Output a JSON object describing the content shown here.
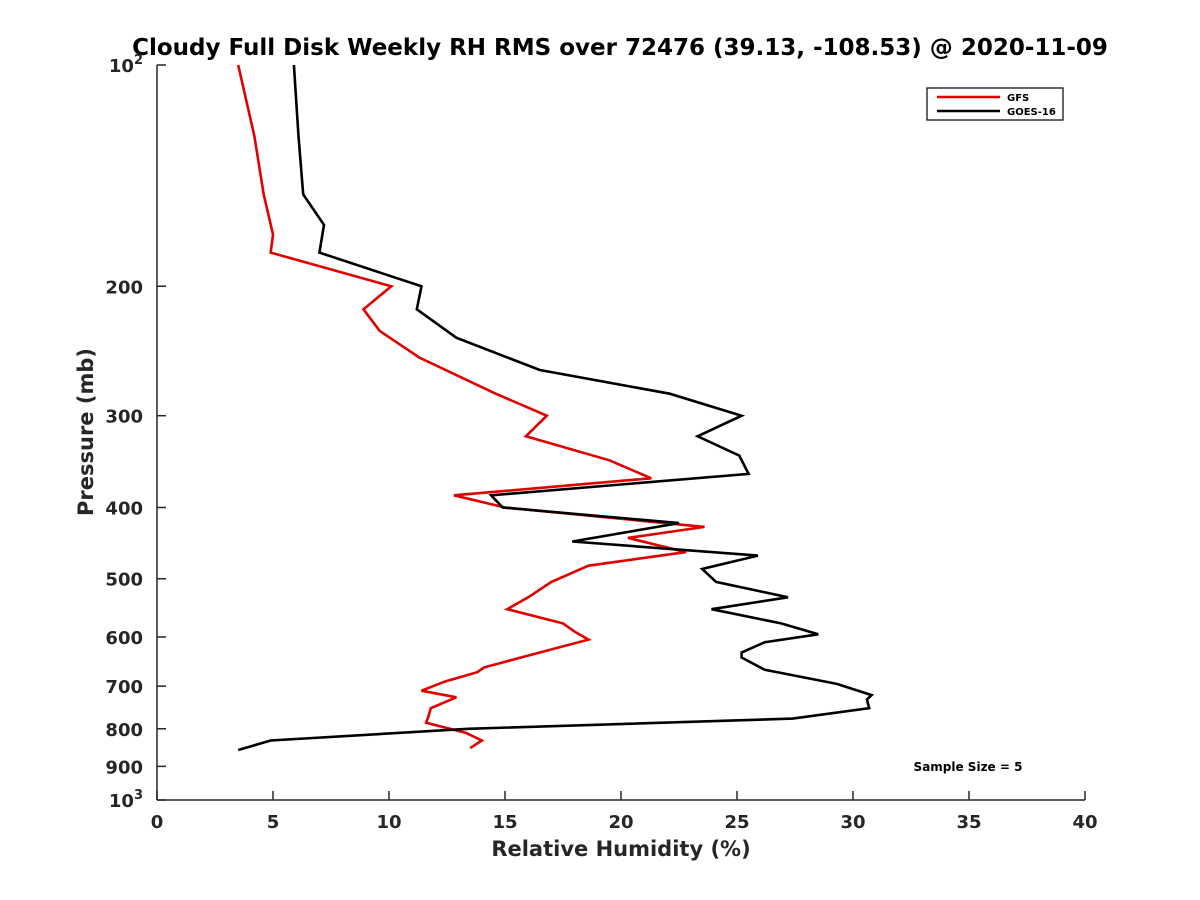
{
  "chart_data": {
    "type": "line",
    "title": "Cloudy Full Disk Weekly RH RMS over 72476 (39.13, -108.53) @ 2020-11-09",
    "xlabel": "Relative Humidity (%)",
    "ylabel": "Pressure (mb)",
    "xlim": [
      0,
      40
    ],
    "ylim": [
      100,
      1000
    ],
    "yscale": "log",
    "y_reversed": true,
    "grid": false,
    "legend_position": "top-right",
    "x_ticks": [
      "0",
      "5",
      "10",
      "15",
      "20",
      "25",
      "30",
      "35",
      "40"
    ],
    "y_ticks": [
      {
        "value": 100,
        "base": "10",
        "exp": "2"
      },
      {
        "value": 200,
        "label": "200"
      },
      {
        "value": 300,
        "label": "300"
      },
      {
        "value": 400,
        "label": "400"
      },
      {
        "value": 500,
        "label": "500"
      },
      {
        "value": 600,
        "label": "600"
      },
      {
        "value": 700,
        "label": "700"
      },
      {
        "value": 800,
        "label": "800"
      },
      {
        "value": 900,
        "label": "900"
      },
      {
        "value": 1000,
        "base": "10",
        "exp": "3"
      }
    ],
    "series": [
      {
        "name": "GFS",
        "color": "#e00000",
        "points": [
          [
            3.5,
            100
          ],
          [
            4.2,
            125
          ],
          [
            4.6,
            150
          ],
          [
            5.0,
            170
          ],
          [
            4.9,
            180
          ],
          [
            10.1,
            200
          ],
          [
            8.9,
            215
          ],
          [
            9.6,
            230
          ],
          [
            11.3,
            250
          ],
          [
            14.6,
            280
          ],
          [
            16.8,
            300
          ],
          [
            15.9,
            320
          ],
          [
            19.5,
            345
          ],
          [
            21.3,
            365
          ],
          [
            12.8,
            385
          ],
          [
            15.0,
            400
          ],
          [
            23.6,
            425
          ],
          [
            20.3,
            440
          ],
          [
            22.8,
            460
          ],
          [
            18.6,
            480
          ],
          [
            17.0,
            505
          ],
          [
            16.0,
            530
          ],
          [
            15.1,
            550
          ],
          [
            17.5,
            575
          ],
          [
            18.0,
            590
          ],
          [
            18.6,
            605
          ],
          [
            16.5,
            630
          ],
          [
            14.1,
            660
          ],
          [
            13.8,
            670
          ],
          [
            12.4,
            690
          ],
          [
            11.4,
            710
          ],
          [
            12.9,
            725
          ],
          [
            11.8,
            750
          ],
          [
            11.7,
            770
          ],
          [
            11.6,
            785
          ],
          [
            13.3,
            810
          ],
          [
            14.0,
            830
          ],
          [
            13.5,
            850
          ]
        ]
      },
      {
        "name": "GOES-16",
        "color": "#000000",
        "points": [
          [
            5.9,
            100
          ],
          [
            6.1,
            125
          ],
          [
            6.3,
            150
          ],
          [
            7.2,
            165
          ],
          [
            7.0,
            180
          ],
          [
            11.4,
            200
          ],
          [
            11.2,
            215
          ],
          [
            12.9,
            235
          ],
          [
            16.5,
            260
          ],
          [
            22.1,
            280
          ],
          [
            25.2,
            300
          ],
          [
            23.3,
            320
          ],
          [
            25.1,
            340
          ],
          [
            25.5,
            360
          ],
          [
            14.4,
            385
          ],
          [
            14.9,
            400
          ],
          [
            22.5,
            420
          ],
          [
            17.9,
            445
          ],
          [
            25.9,
            465
          ],
          [
            23.5,
            485
          ],
          [
            24.1,
            505
          ],
          [
            27.2,
            530
          ],
          [
            23.9,
            550
          ],
          [
            26.9,
            575
          ],
          [
            28.5,
            595
          ],
          [
            26.2,
            610
          ],
          [
            25.2,
            630
          ],
          [
            25.2,
            640
          ],
          [
            26.2,
            665
          ],
          [
            29.3,
            695
          ],
          [
            30.8,
            720
          ],
          [
            30.6,
            730
          ],
          [
            30.7,
            750
          ],
          [
            27.4,
            775
          ],
          [
            13.4,
            800
          ],
          [
            4.9,
            830
          ],
          [
            3.5,
            855
          ]
        ]
      }
    ],
    "annotation": "Sample Size = 5"
  }
}
